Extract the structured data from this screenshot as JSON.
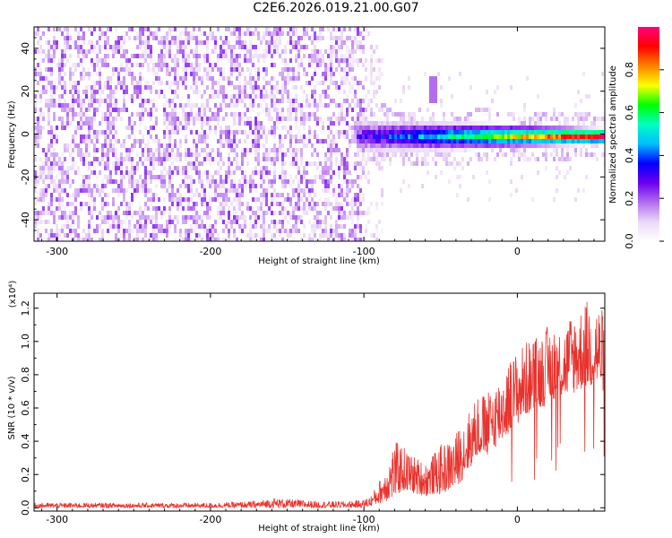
{
  "figure_title": "C2E6.2026.019.21.00.G07",
  "chart_data": [
    {
      "type": "heatmap",
      "name": "spectrogram",
      "xlabel": "Height of straight line (km)",
      "ylabel": "Frequency (Hz)",
      "xlim": [
        -315,
        57
      ],
      "ylim": [
        -50,
        50
      ],
      "x_ticks": [
        -300,
        -200,
        -100,
        0
      ],
      "x_tick_labels": [
        "-300",
        "-200",
        "-100",
        "0"
      ],
      "y_ticks": [
        -40,
        -20,
        0,
        20,
        40
      ],
      "y_tick_labels": [
        "-40",
        "-20",
        "0",
        "20",
        "40"
      ],
      "colorbar": {
        "label": "Normalized spectral amplitude",
        "range": [
          0,
          1
        ],
        "ticks": [
          0.0,
          0.2,
          0.4,
          0.6,
          0.8
        ],
        "tick_labels": [
          "0.0",
          "0.2",
          "0.4",
          "0.6",
          "0.8"
        ],
        "colors": [
          "#ffffff",
          "#ebd8f7",
          "#b26cf0",
          "#6a00f0",
          "#0000ff",
          "#00bfff",
          "#00ffc0",
          "#00ff00",
          "#ffff00",
          "#ff8000",
          "#ff0000",
          "#ff0080"
        ]
      },
      "signal_ridge": {
        "frequency_hz": 0,
        "noise_region_x": [
          -315,
          -100
        ],
        "signal_start_x": -105,
        "feature_x": -55,
        "feature_freq_range": [
          15,
          27
        ]
      }
    },
    {
      "type": "line",
      "name": "snr",
      "xlabel": "Height of straight line (km)",
      "ylabel": "SNR (10 * v/v)",
      "y_scale_label": "(x10⁴)",
      "xlim": [
        -315,
        57
      ],
      "ylim": [
        -0.02,
        1.29
      ],
      "x_ticks": [
        -300,
        -200,
        -100,
        0
      ],
      "x_tick_labels": [
        "-300",
        "-200",
        "-100",
        "0"
      ],
      "y_ticks": [
        0.0,
        0.2,
        0.4,
        0.6,
        0.8,
        1.0,
        1.2
      ],
      "y_tick_labels": [
        "0.0",
        "0.2",
        "0.4",
        "0.6",
        "0.8",
        "1.0",
        "1.2"
      ],
      "line_color": "#e8332e",
      "series": [
        {
          "name": "SNR envelope",
          "x": [
            -315,
            -250,
            -200,
            -170,
            -160,
            -130,
            -110,
            -100,
            -95,
            -88,
            -80,
            -75,
            -70,
            -65,
            -60,
            -55,
            -50,
            -45,
            -40,
            -35,
            -30,
            -25,
            -20,
            -15,
            -10,
            -5,
            0,
            5,
            10,
            15,
            20,
            25,
            30,
            35,
            40,
            45,
            50,
            55
          ],
          "low": [
            0.0,
            0.0,
            0.0,
            0.0,
            0.0,
            0.0,
            0.0,
            0.0,
            0.01,
            0.03,
            0.06,
            0.1,
            0.09,
            0.08,
            0.07,
            0.08,
            0.08,
            0.1,
            0.12,
            0.18,
            0.25,
            0.32,
            0.3,
            0.36,
            0.4,
            0.45,
            0.5,
            0.55,
            0.58,
            0.6,
            0.62,
            0.66,
            0.66,
            0.68,
            0.7,
            0.72,
            0.72,
            0.7
          ],
          "high": [
            0.03,
            0.03,
            0.03,
            0.04,
            0.06,
            0.04,
            0.04,
            0.05,
            0.08,
            0.2,
            0.4,
            0.38,
            0.33,
            0.3,
            0.28,
            0.32,
            0.38,
            0.4,
            0.45,
            0.55,
            0.6,
            0.7,
            0.68,
            0.75,
            0.82,
            0.9,
            0.95,
            1.0,
            1.02,
            1.05,
            1.1,
            1.12,
            1.08,
            1.18,
            1.2,
            1.25,
            1.28,
            1.2
          ]
        }
      ]
    }
  ]
}
